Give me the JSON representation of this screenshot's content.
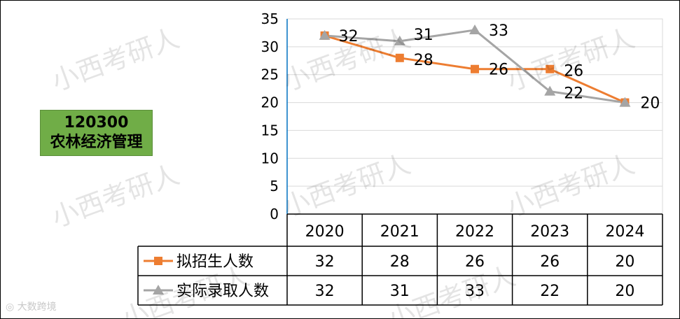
{
  "major": {
    "code": "120300",
    "name": "农林经济管理"
  },
  "watermark": {
    "text": "小西考研人"
  },
  "logo_watermark": {
    "text": "大数跨境",
    "icon": "double-circle-icon"
  },
  "chart_data": {
    "type": "line",
    "categories": [
      "2020",
      "2021",
      "2022",
      "2023",
      "2024"
    ],
    "ylim": [
      0,
      35
    ],
    "yticks": [
      0,
      5,
      10,
      15,
      20,
      25,
      30,
      35
    ],
    "grid": true,
    "series": [
      {
        "name": "拟招生人数",
        "color": "#ed7d31",
        "marker": "square",
        "values": [
          32,
          28,
          26,
          26,
          20
        ]
      },
      {
        "name": "实际录取人数",
        "color": "#a5a5a5",
        "marker": "triangle",
        "values": [
          32,
          31,
          33,
          22,
          20
        ]
      }
    ],
    "legend": "data-table"
  }
}
